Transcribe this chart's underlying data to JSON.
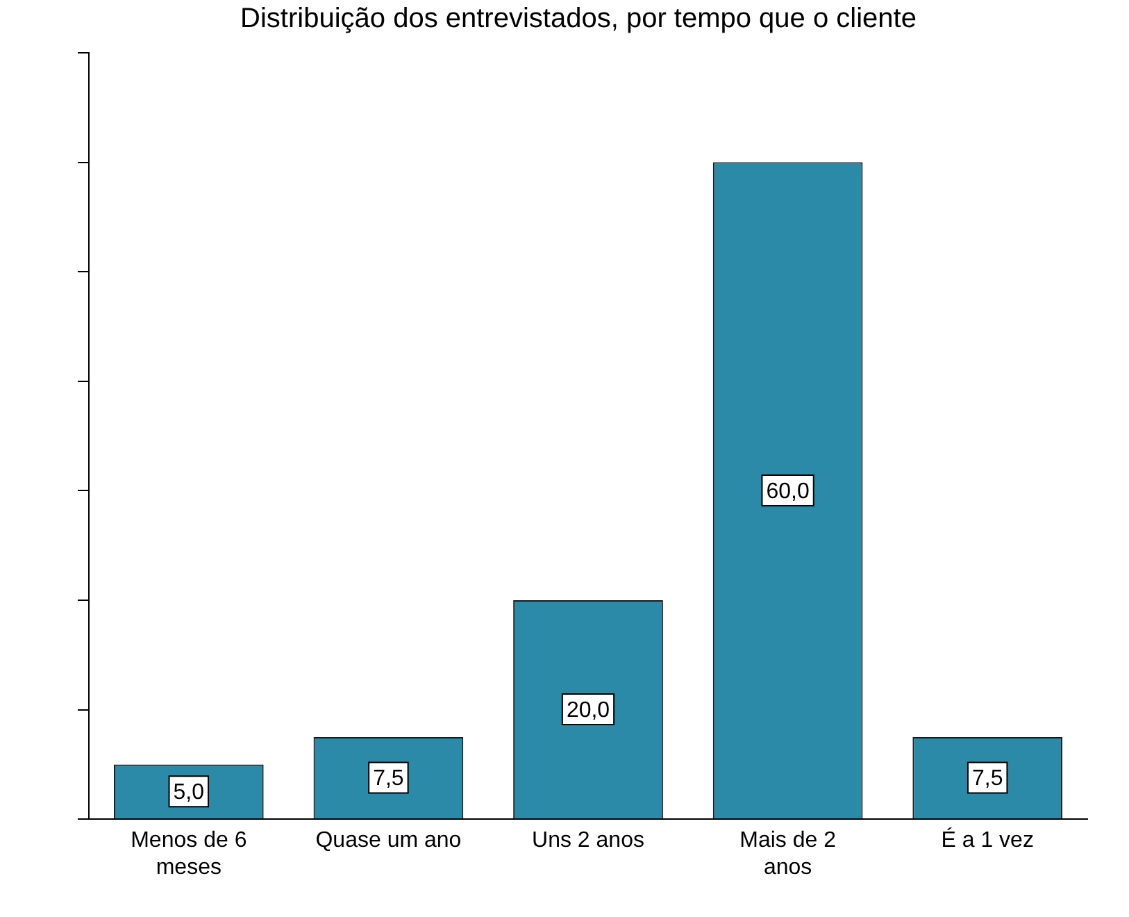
{
  "chart_data": {
    "type": "bar",
    "title": "Distribuição dos entrevistados, por tempo que o cliente",
    "categories": [
      "Menos de 6 meses",
      "Quase um ano",
      "Uns 2 anos",
      "Mais de 2 anos",
      "É a 1 vez"
    ],
    "values": [
      5.0,
      7.5,
      20.0,
      60.0,
      7.5
    ],
    "color": "#2a8aa8",
    "value_labels": [
      "5,0",
      "7,5",
      "20,0",
      "60,0",
      "7,5"
    ],
    "tick_labels": "x",
    "grid": false
  }
}
